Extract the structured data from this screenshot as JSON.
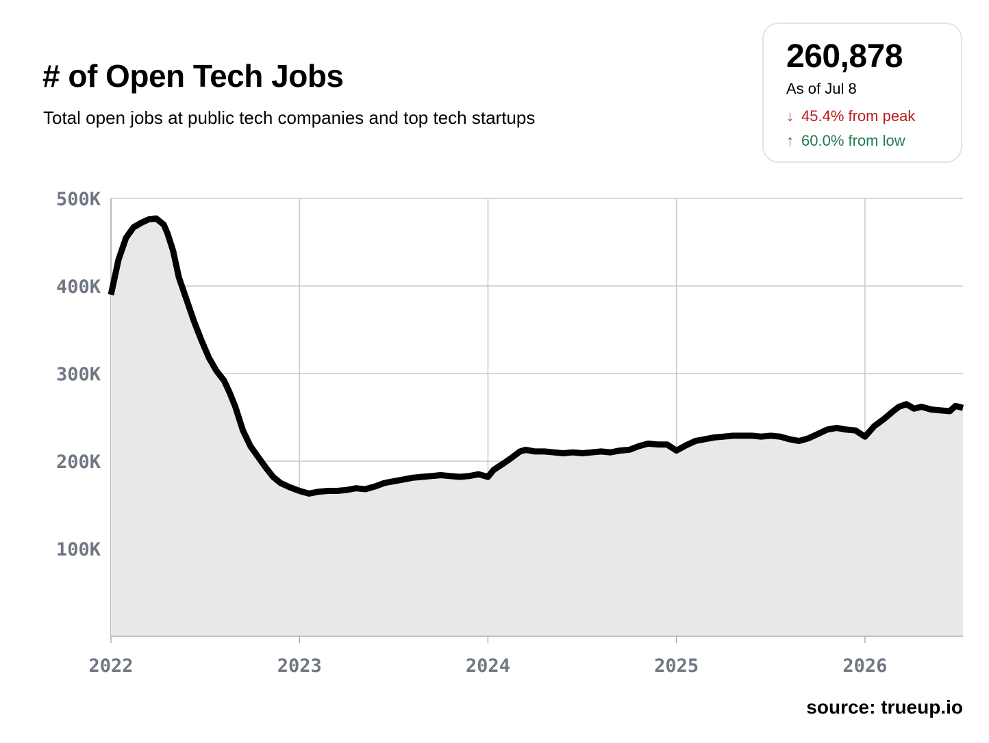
{
  "header": {
    "title": "# of Open Tech Jobs",
    "subtitle": "Total open jobs at public tech companies and top tech startups"
  },
  "stats": {
    "value": "260,878",
    "as_of": "As of Jul 8",
    "peak_arrow": "↓",
    "peak_change": "45.4% from peak",
    "peak_color": "#b91c1c",
    "low_arrow": "↑",
    "low_change": "60.0% from low",
    "low_color": "#1f7a4d"
  },
  "source": "source: trueup.io",
  "chart_data": {
    "type": "area",
    "title": "# of Open Tech Jobs",
    "xlabel": "",
    "ylabel": "",
    "xlim": [
      2022.0,
      2026.52
    ],
    "ylim": [
      0,
      500000
    ],
    "x_ticks": [
      2022,
      2023,
      2024,
      2025,
      2026
    ],
    "x_tick_labels": [
      "2022",
      "2023",
      "2024",
      "2025",
      "2026"
    ],
    "y_ticks": [
      100000,
      200000,
      300000,
      400000,
      500000
    ],
    "y_tick_labels": [
      "100K",
      "200K",
      "300K",
      "400K",
      "500K"
    ],
    "grid": true,
    "line_color": "#000000",
    "fill_color": "#e8e8e8",
    "series": [
      {
        "x": [
          2022.0,
          2022.04,
          2022.08,
          2022.12,
          2022.16,
          2022.2,
          2022.24,
          2022.28,
          2022.3,
          2022.33,
          2022.36,
          2022.4,
          2022.44,
          2022.48,
          2022.52,
          2022.56,
          2022.6,
          2022.63,
          2022.66,
          2022.7,
          2022.74,
          2022.78,
          2022.82,
          2022.86,
          2022.9,
          2022.95,
          2023.0,
          2023.05,
          2023.1,
          2023.15,
          2023.2,
          2023.25,
          2023.3,
          2023.35,
          2023.4,
          2023.45,
          2023.5,
          2023.55,
          2023.6,
          2023.65,
          2023.7,
          2023.75,
          2023.8,
          2023.85,
          2023.9,
          2023.95,
          2024.0,
          2024.03,
          2024.08,
          2024.12,
          2024.17,
          2024.2,
          2024.25,
          2024.3,
          2024.35,
          2024.4,
          2024.45,
          2024.5,
          2024.55,
          2024.6,
          2024.65,
          2024.7,
          2024.75,
          2024.8,
          2024.85,
          2024.9,
          2024.95,
          2025.0,
          2025.05,
          2025.1,
          2025.15,
          2025.2,
          2025.25,
          2025.3,
          2025.35,
          2025.4,
          2025.45,
          2025.5,
          2025.55,
          2025.6,
          2025.65,
          2025.7,
          2025.75,
          2025.8,
          2025.85,
          2025.9,
          2025.95,
          2026.0,
          2026.05,
          2026.1,
          2026.15,
          2026.18,
          2026.22,
          2026.26,
          2026.3,
          2026.35,
          2026.4,
          2026.45,
          2026.48,
          2026.52
        ],
        "y": [
          390000,
          430000,
          455000,
          467000,
          472000,
          476000,
          477000,
          470000,
          460000,
          440000,
          410000,
          385000,
          360000,
          338000,
          318000,
          303000,
          292000,
          278000,
          262000,
          235000,
          217000,
          205000,
          193000,
          182000,
          175000,
          170000,
          166000,
          163000,
          165000,
          166000,
          166000,
          167000,
          169000,
          168000,
          171000,
          175000,
          177000,
          179000,
          181000,
          182000,
          183000,
          184000,
          183000,
          182000,
          183000,
          185000,
          182000,
          190000,
          197000,
          203000,
          211000,
          213000,
          211000,
          211000,
          210000,
          209000,
          210000,
          209000,
          210000,
          211000,
          210000,
          212000,
          213000,
          217000,
          220000,
          219000,
          219000,
          212000,
          218000,
          223000,
          225000,
          227000,
          228000,
          229000,
          229000,
          229000,
          228000,
          229000,
          228000,
          225000,
          223000,
          226000,
          231000,
          236000,
          238000,
          236000,
          235000,
          228000,
          240000,
          248000,
          257000,
          262000,
          265000,
          260000,
          262000,
          259000,
          258000,
          257000,
          263000,
          260878
        ]
      }
    ]
  }
}
